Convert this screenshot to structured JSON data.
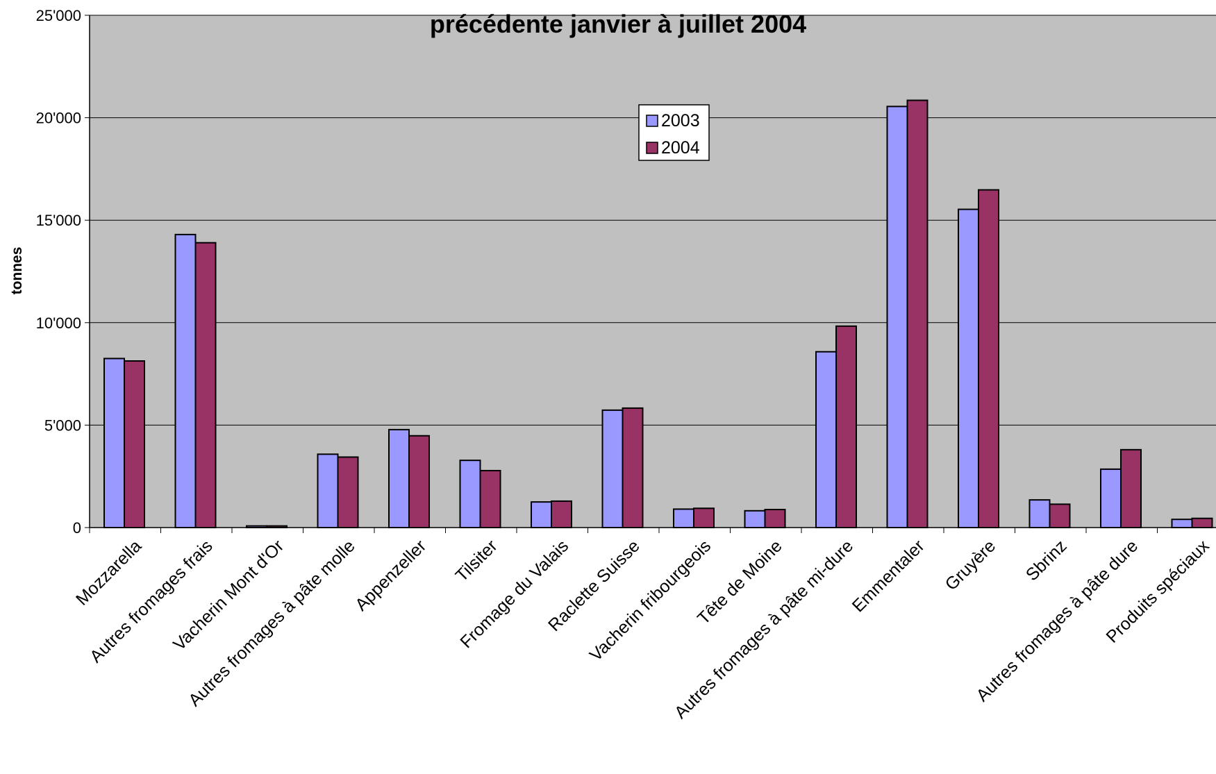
{
  "chart_data": {
    "type": "bar",
    "title": "précédente janvier à juillet 2004",
    "xlabel": "",
    "ylabel": "tonnes",
    "ylim": [
      0,
      25000
    ],
    "y_ticks": [
      0,
      5000,
      10000,
      15000,
      20000,
      25000
    ],
    "y_tick_labels": [
      "0",
      "5'000",
      "10'000",
      "15'000",
      "20'000",
      "25'000"
    ],
    "grid": true,
    "legend_position": "top-center",
    "categories": [
      "Mozzarella",
      "Autres fromages frais",
      "Vacherin Mont d'Or",
      "Autres fromages à pâte molle",
      "Appenzeller",
      "Tilsiter",
      "Fromage du Valais",
      "Raclette Suisse",
      "Vacherin fribourgeois",
      "Tête de Moine",
      "Autres fromages à pâte mi-dure",
      "Emmentaler",
      "Gruyère",
      "Sbrinz",
      "Autres fromages à pâte dure",
      "Produits spéciaux"
    ],
    "series": [
      {
        "name": "2003",
        "color": "#9999ff",
        "values": [
          8250,
          14300,
          80,
          3580,
          4780,
          3280,
          1250,
          5730,
          900,
          820,
          8580,
          20550,
          15530,
          1350,
          2850,
          400
        ]
      },
      {
        "name": "2004",
        "color": "#993366",
        "values": [
          8130,
          13900,
          80,
          3440,
          4480,
          2780,
          1290,
          5830,
          940,
          880,
          9830,
          20850,
          16480,
          1140,
          3800,
          450
        ]
      }
    ],
    "plot_background": "#c0c0c0"
  }
}
